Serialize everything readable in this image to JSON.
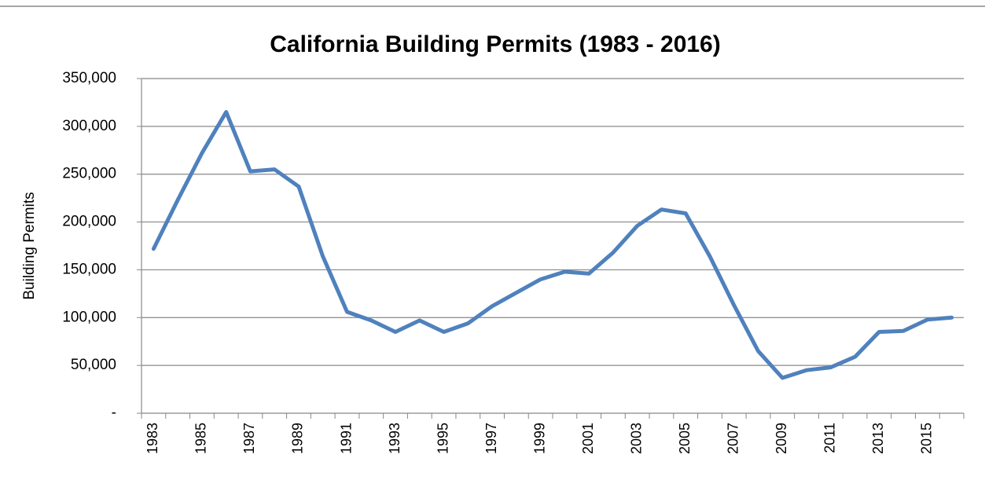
{
  "chart_data": {
    "type": "line",
    "title": "California Building Permits (1983 - 2016)",
    "y_label": "Building Permits",
    "categories": [
      "1983",
      null,
      "1985",
      null,
      "1987",
      null,
      "1989",
      null,
      "1991",
      null,
      "1993",
      null,
      "1995",
      null,
      "1997",
      null,
      "1999",
      null,
      "2001",
      null,
      "2003",
      null,
      "2005",
      null,
      "2007",
      null,
      "2009",
      null,
      "2011",
      null,
      "2013",
      null,
      "2015",
      null
    ],
    "values": [
      172000,
      223000,
      272000,
      315000,
      253000,
      255000,
      237000,
      164000,
      106000,
      97000,
      85000,
      97000,
      85000,
      94000,
      112000,
      126000,
      140000,
      148000,
      146000,
      168000,
      196000,
      213000,
      209000,
      164000,
      113000,
      65000,
      37000,
      45000,
      48000,
      59000,
      85000,
      86000,
      98000,
      100000
    ],
    "color": "#4f81bd",
    "ylim": [
      0,
      350000
    ],
    "yticks": [
      {
        "value": 0,
        "label": "-"
      },
      {
        "value": 50000,
        "label": "50,000"
      },
      {
        "value": 100000,
        "label": "100,000"
      },
      {
        "value": 150000,
        "label": "150,000"
      },
      {
        "value": 200000,
        "label": "200,000"
      },
      {
        "value": 250000,
        "label": "250,000"
      },
      {
        "value": 300000,
        "label": "300,000"
      },
      {
        "value": 350000,
        "label": "350,000"
      }
    ],
    "grid": true
  }
}
